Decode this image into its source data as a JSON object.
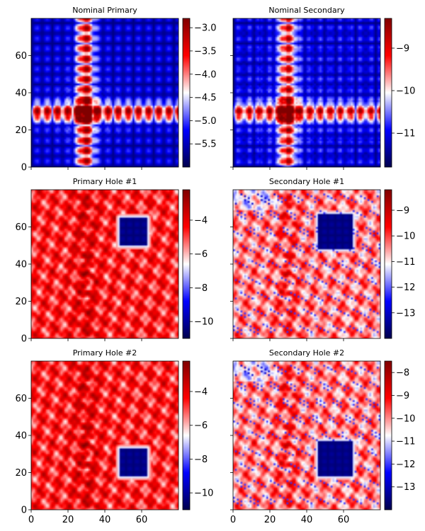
{
  "colors": {
    "low": "#00004c",
    "mid": "#ffffff",
    "high": "#800000"
  },
  "chart_data": [
    {
      "type": "heatmap",
      "title": "Nominal Primary",
      "pattern": "nominal",
      "variant": "primary",
      "xlim": [
        0,
        79
      ],
      "ylim": [
        0,
        79
      ],
      "yticks": [
        0,
        20,
        40,
        60
      ],
      "xticks": [],
      "cbar": {
        "vmin": -6.0,
        "vmax": -2.8,
        "ticks": [
          -3.0,
          -3.5,
          -4.0,
          -4.5,
          -5.0,
          -5.5
        ],
        "labels": [
          "−3.0",
          "−3.5",
          "−4.0",
          "−4.5",
          "−5.0",
          "−5.5"
        ]
      }
    },
    {
      "type": "heatmap",
      "title": "Nominal Secondary",
      "pattern": "nominal",
      "variant": "secondary",
      "xlim": [
        0,
        79
      ],
      "ylim": [
        0,
        79
      ],
      "yticks": [],
      "xticks": [],
      "cbar": {
        "vmin": -11.8,
        "vmax": -8.3,
        "ticks": [
          -9,
          -10,
          -11
        ],
        "labels": [
          "−9",
          "−10",
          "−11"
        ]
      }
    },
    {
      "type": "heatmap",
      "title": "Primary Hole #1",
      "pattern": "hole",
      "variant": "primary",
      "hole": {
        "x": [
          48,
          62
        ],
        "y": [
          50,
          64
        ]
      },
      "xlim": [
        0,
        79
      ],
      "ylim": [
        0,
        79
      ],
      "yticks": [
        0,
        20,
        40,
        60
      ],
      "xticks": [],
      "cbar": {
        "vmin": -11.0,
        "vmax": -2.2,
        "ticks": [
          -4,
          -6,
          -8,
          -10
        ],
        "labels": [
          "−4",
          "−6",
          "−8",
          "−10"
        ]
      }
    },
    {
      "type": "heatmap",
      "title": "Secondary Hole #1",
      "pattern": "hole",
      "variant": "secondary",
      "hole": {
        "x": [
          46,
          64
        ],
        "y": [
          48,
          66
        ]
      },
      "xlim": [
        0,
        79
      ],
      "ylim": [
        0,
        79
      ],
      "yticks": [],
      "xticks": [],
      "cbar": {
        "vmin": -14.0,
        "vmax": -8.2,
        "ticks": [
          -9,
          -10,
          -11,
          -12,
          -13
        ],
        "labels": [
          "−9",
          "−10",
          "−11",
          "−12",
          "−13"
        ]
      }
    },
    {
      "type": "heatmap",
      "title": "Primary Hole #2",
      "pattern": "hole",
      "variant": "primary",
      "hole": {
        "x": [
          48,
          62
        ],
        "y": [
          18,
          32
        ]
      },
      "xlim": [
        0,
        79
      ],
      "ylim": [
        0,
        79
      ],
      "yticks": [
        0,
        20,
        40,
        60
      ],
      "xticks": [
        0,
        20,
        40,
        60
      ],
      "cbar": {
        "vmin": -11.0,
        "vmax": -2.2,
        "ticks": [
          -4,
          -6,
          -8,
          -10
        ],
        "labels": [
          "−4",
          "−6",
          "−8",
          "−10"
        ]
      }
    },
    {
      "type": "heatmap",
      "title": "Secondary Hole #2",
      "pattern": "hole",
      "variant": "secondary",
      "hole": {
        "x": [
          46,
          64
        ],
        "y": [
          18,
          36
        ]
      },
      "xlim": [
        0,
        79
      ],
      "ylim": [
        0,
        79
      ],
      "yticks": [],
      "xticks": [
        0,
        20,
        40,
        60
      ],
      "cbar": {
        "vmin": -14.0,
        "vmax": -7.5,
        "ticks": [
          -8,
          -9,
          -10,
          -11,
          -12,
          -13
        ],
        "labels": [
          "−8",
          "−9",
          "−10",
          "−11",
          "−12",
          "−13"
        ]
      }
    }
  ]
}
